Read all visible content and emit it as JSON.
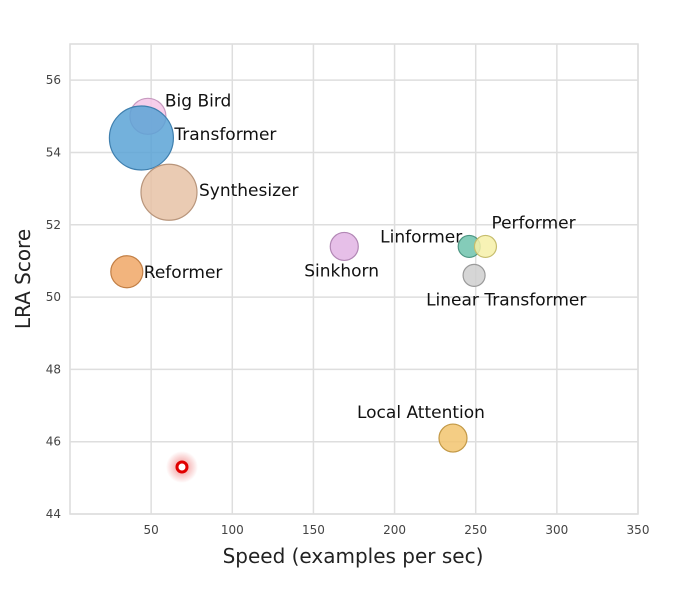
{
  "chart_data": {
    "type": "scatter",
    "title": "",
    "xlabel": "Speed (examples per sec)",
    "ylabel": "LRA Score",
    "xlim": [
      0,
      350
    ],
    "ylim": [
      44,
      57
    ],
    "xticks": [
      50,
      100,
      150,
      200,
      250,
      300,
      350
    ],
    "yticks": [
      44,
      46,
      48,
      50,
      52,
      54,
      56
    ],
    "grid": true,
    "points": [
      {
        "name": "Big Bird",
        "x": 48,
        "y": 55.0,
        "size": 0.9,
        "color": "#f4c6e7",
        "stroke": "#c79ac0"
      },
      {
        "name": "Transformer",
        "x": 44,
        "y": 54.4,
        "size": 1.6,
        "color": "#5aa3d6",
        "stroke": "#3f7fae"
      },
      {
        "name": "Synthesizer",
        "x": 61,
        "y": 52.9,
        "size": 1.4,
        "color": "#e6c2a6",
        "stroke": "#b8957b"
      },
      {
        "name": "Reformer",
        "x": 35,
        "y": 50.7,
        "size": 0.8,
        "color": "#f0a766",
        "stroke": "#c27f45"
      },
      {
        "name": "Linformer",
        "x": 246,
        "y": 51.4,
        "size": 0.55,
        "color": "#6fc3ad",
        "stroke": "#4d9683"
      },
      {
        "name": "Sinkhorn",
        "x": 169,
        "y": 51.4,
        "size": 0.7,
        "color": "#e2b4e4",
        "stroke": "#b287b5"
      },
      {
        "name": "Performer",
        "x": 256,
        "y": 51.4,
        "size": 0.55,
        "color": "#f6f0a8",
        "stroke": "#c6bd6d"
      },
      {
        "name": "Linear Transformer",
        "x": 249,
        "y": 50.6,
        "size": 0.55,
        "color": "#cfcfcf",
        "stroke": "#9a9a9a"
      },
      {
        "name": "Local Attention",
        "x": 236,
        "y": 46.1,
        "size": 0.7,
        "color": "#f2c46e",
        "stroke": "#c29845"
      }
    ],
    "marker": {
      "name": "highlight marker",
      "x": 69,
      "y": 45.3,
      "color": "#e00000"
    }
  }
}
